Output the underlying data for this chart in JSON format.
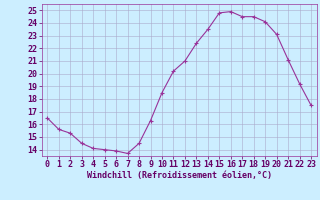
{
  "x": [
    0,
    1,
    2,
    3,
    4,
    5,
    6,
    7,
    8,
    9,
    10,
    11,
    12,
    13,
    14,
    15,
    16,
    17,
    18,
    19,
    20,
    21,
    22,
    23
  ],
  "y": [
    16.5,
    15.6,
    15.3,
    14.5,
    14.1,
    14.0,
    13.9,
    13.7,
    14.5,
    16.3,
    18.5,
    20.2,
    21.0,
    22.4,
    23.5,
    24.8,
    24.9,
    24.5,
    24.5,
    24.1,
    23.1,
    21.1,
    19.2,
    17.5
  ],
  "xlim": [
    -0.5,
    23.5
  ],
  "ylim": [
    13.5,
    25.5
  ],
  "yticks": [
    14,
    15,
    16,
    17,
    18,
    19,
    20,
    21,
    22,
    23,
    24,
    25
  ],
  "xticks": [
    0,
    1,
    2,
    3,
    4,
    5,
    6,
    7,
    8,
    9,
    10,
    11,
    12,
    13,
    14,
    15,
    16,
    17,
    18,
    19,
    20,
    21,
    22,
    23
  ],
  "line_color": "#993399",
  "marker": "+",
  "bg_color": "#cceeff",
  "grid_color": "#aaaacc",
  "xlabel": "Windchill (Refroidissement éolien,°C)",
  "xlabel_fontsize": 6.0,
  "tick_fontsize": 6.0,
  "marker_size": 3,
  "line_width": 0.8,
  "label_color": "#660066",
  "spine_color": "#993399"
}
